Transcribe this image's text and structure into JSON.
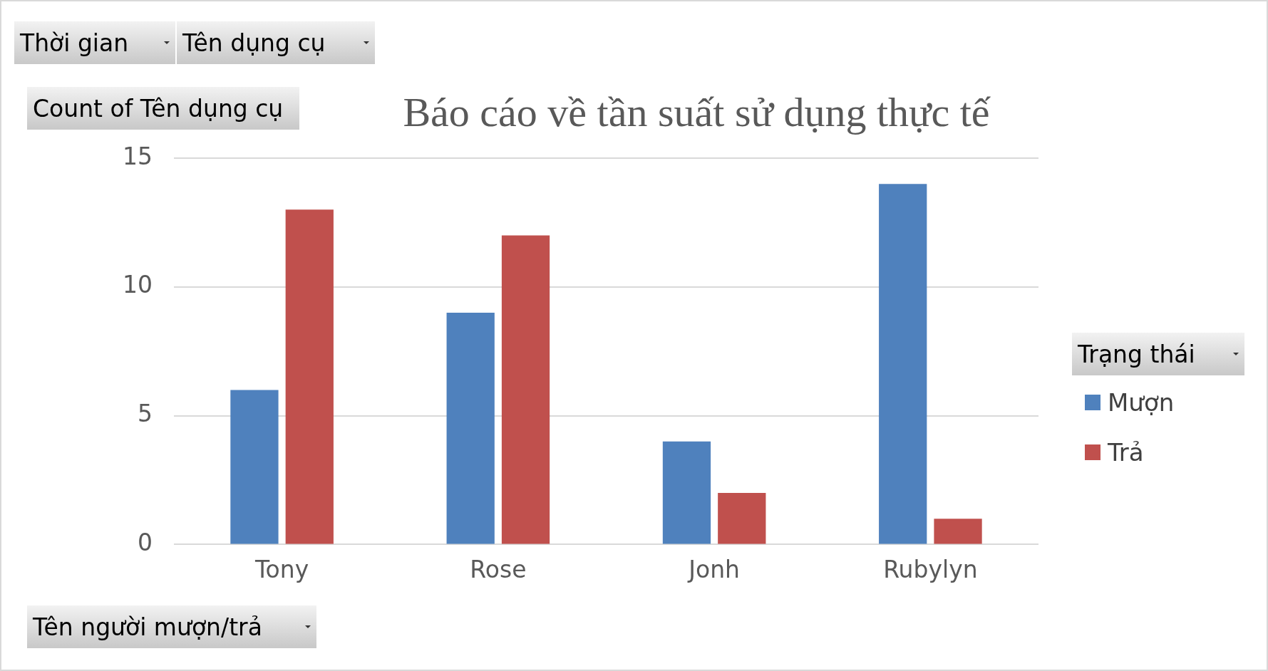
{
  "chart_data": {
    "type": "bar",
    "title": "Báo cáo về tần suất sử dụng thực tế",
    "xlabel": "Tên người mượn/trả",
    "ylabel": "Count of Tên dụng cụ",
    "legend_title": "Trạng thái",
    "annotations": [
      "Thời gian",
      "Tên dụng cụ"
    ],
    "categories": [
      "Tony",
      "Rose",
      "Jonh",
      "Rubylyn"
    ],
    "series": [
      {
        "name": "Mượn",
        "color": "#4f81bd",
        "values": [
          6,
          9,
          4,
          14
        ]
      },
      {
        "name": "Trả",
        "color": "#c0504d",
        "values": [
          13,
          12,
          2,
          1
        ]
      }
    ],
    "ylim": [
      0,
      15
    ],
    "yticks": [
      0,
      5,
      10,
      15
    ],
    "grid": "y",
    "legend": "right"
  }
}
